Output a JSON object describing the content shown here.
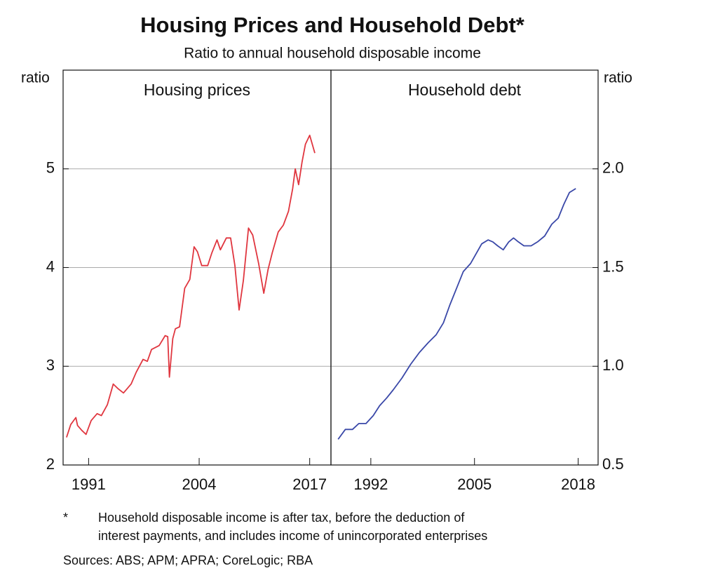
{
  "title": "Housing Prices and Household Debt*",
  "subtitle": "Ratio to annual household disposable income",
  "footnote": {
    "marker": "*",
    "lines": [
      "Household disposable income is after tax, before the deduction of",
      "interest payments, and includes income of unincorporated enterprises"
    ]
  },
  "sources": "Sources: ABS; APM; APRA; CoreLogic; RBA",
  "chart_data": [
    {
      "type": "line",
      "title": "Housing prices",
      "y_label": "ratio",
      "grid": true,
      "xlim": [
        1988,
        2019.5
      ],
      "xticks": [
        1991,
        2004,
        2017
      ],
      "ylim": [
        2,
        6
      ],
      "yticks": [
        2,
        3,
        4,
        5
      ],
      "x": [
        1988.4,
        1988.9,
        1989.5,
        1989.7,
        1990.2,
        1990.7,
        1991.3,
        1992.0,
        1992.5,
        1993.2,
        1993.9,
        1994.5,
        1995.1,
        1996.0,
        1996.6,
        1997.4,
        1997.9,
        1998.4,
        1999.3,
        2000.0,
        2000.3,
        2000.5,
        2000.9,
        2001.2,
        2001.7,
        2002.3,
        2002.9,
        2003.4,
        2003.8,
        2004.3,
        2005.0,
        2005.5,
        2006.1,
        2006.5,
        2007.2,
        2007.7,
        2008.2,
        2008.7,
        2009.2,
        2009.8,
        2010.3,
        2011.0,
        2011.6,
        2012.1,
        2012.6,
        2013.3,
        2013.9,
        2014.5,
        2015.0,
        2015.3,
        2015.7,
        2016.1,
        2016.5,
        2017.0,
        2017.6
      ],
      "series": [
        {
          "color": "#e0363f",
          "values": [
            2.28,
            2.41,
            2.48,
            2.4,
            2.35,
            2.31,
            2.45,
            2.52,
            2.5,
            2.61,
            2.82,
            2.77,
            2.73,
            2.82,
            2.94,
            3.07,
            3.05,
            3.17,
            3.21,
            3.31,
            3.3,
            2.89,
            3.28,
            3.38,
            3.4,
            3.79,
            3.88,
            4.21,
            4.16,
            4.02,
            4.02,
            4.15,
            4.28,
            4.18,
            4.3,
            4.3,
            4.02,
            3.57,
            3.87,
            4.4,
            4.33,
            4.04,
            3.74,
            3.98,
            4.15,
            4.36,
            4.43,
            4.57,
            4.8,
            5.0,
            4.84,
            5.07,
            5.25,
            5.34,
            5.16
          ]
        }
      ]
    },
    {
      "type": "line",
      "title": "Household debt",
      "y_label": "ratio",
      "grid": true,
      "xlim": [
        1987,
        2020.5
      ],
      "xticks": [
        1992,
        2005,
        2018
      ],
      "y2lim": [
        0.5,
        2.5
      ],
      "y2ticks": [
        {
          "value": 0.5,
          "label": "0.5"
        },
        {
          "value": 1,
          "label": "1.0"
        },
        {
          "value": 1.5,
          "label": "1.5"
        },
        {
          "value": 2,
          "label": "2.0"
        }
      ],
      "x": [
        1987.9,
        1988.8,
        1989.7,
        1990.5,
        1991.4,
        1992.3,
        1993.1,
        1994.0,
        1994.8,
        1995.9,
        1997.0,
        1998.1,
        1999.2,
        2000.2,
        2001.1,
        2001.9,
        2002.8,
        2003.6,
        2004.5,
        2005.2,
        2005.9,
        2006.7,
        2007.3,
        2007.9,
        2008.6,
        2009.3,
        2009.9,
        2010.5,
        2011.2,
        2012.1,
        2012.9,
        2013.8,
        2014.7,
        2015.5,
        2016.2,
        2016.9,
        2017.7
      ],
      "series": [
        {
          "color": "#3a48a8",
          "axis": "y2",
          "values": [
            0.63,
            0.68,
            0.68,
            0.71,
            0.71,
            0.75,
            0.8,
            0.84,
            0.88,
            0.94,
            1.01,
            1.07,
            1.12,
            1.16,
            1.22,
            1.31,
            1.4,
            1.48,
            1.52,
            1.57,
            1.62,
            1.64,
            1.63,
            1.61,
            1.59,
            1.63,
            1.65,
            1.63,
            1.61,
            1.61,
            1.63,
            1.66,
            1.72,
            1.75,
            1.82,
            1.88,
            1.9
          ]
        }
      ]
    }
  ]
}
